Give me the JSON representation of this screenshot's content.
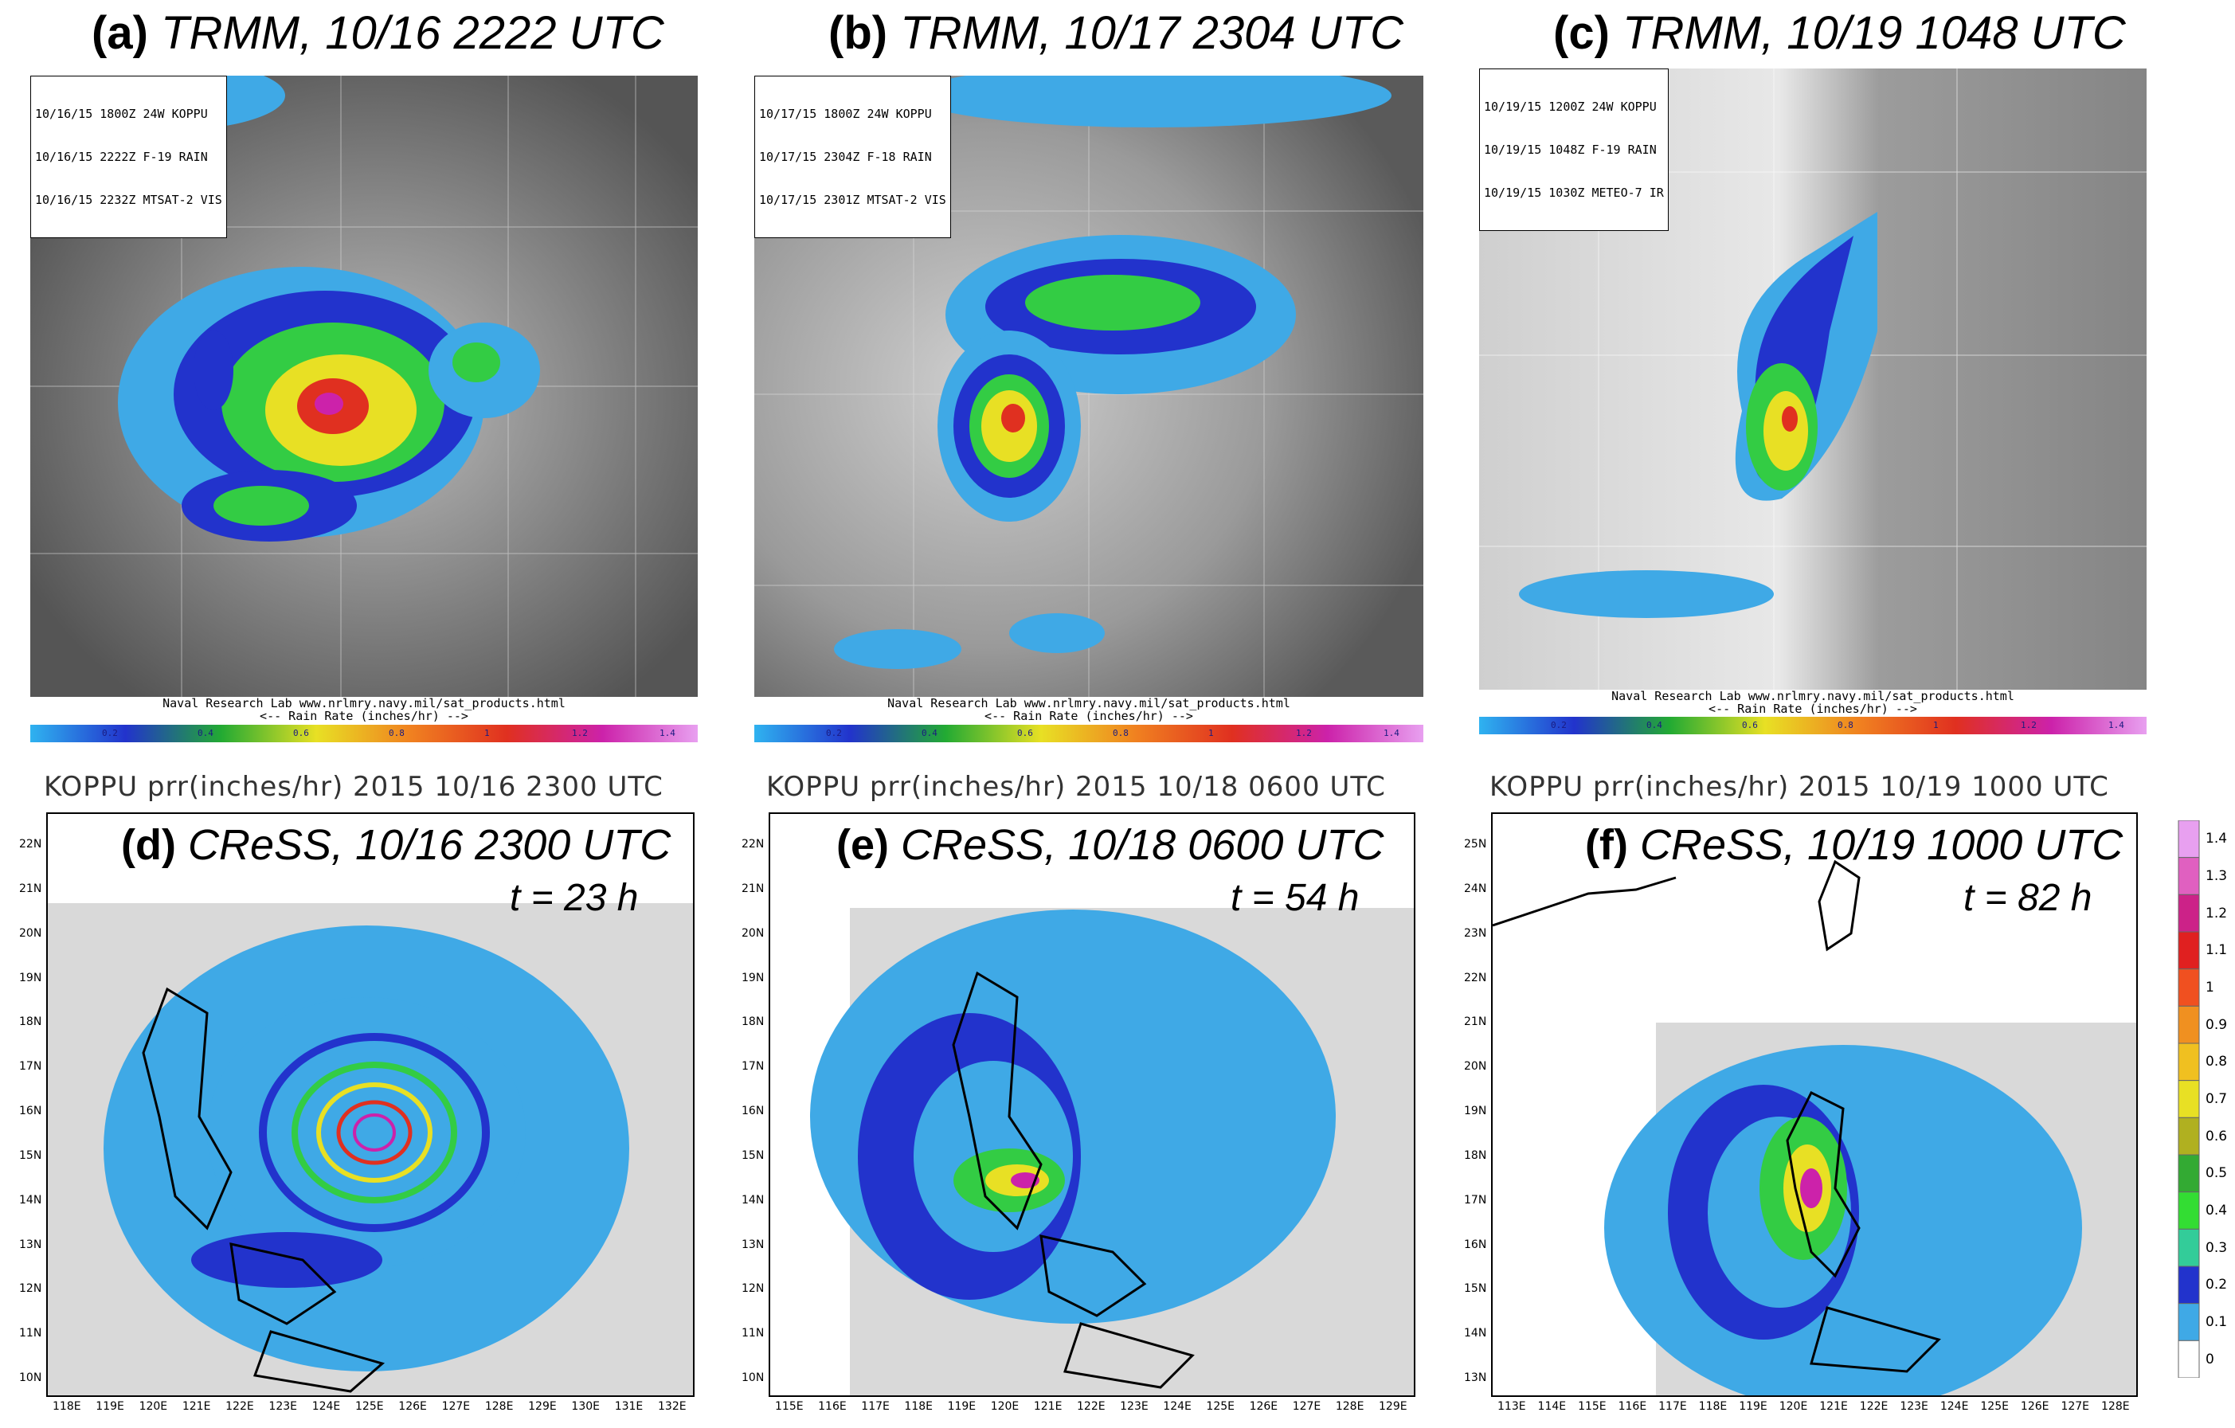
{
  "top_panels": [
    {
      "letter": "(a)",
      "title": "TRMM, 10/16 2222 UTC",
      "legend": [
        "10/16/15 1800Z 24W KOPPU",
        "10/16/15 2222Z F-19 RAIN",
        "10/16/15 2232Z MTSAT-2 VIS"
      ]
    },
    {
      "letter": "(b)",
      "title": "TRMM, 10/17 2304 UTC",
      "legend": [
        "10/17/15 1800Z 24W KOPPU",
        "10/17/15 2304Z F-18 RAIN",
        "10/17/15 2301Z MTSAT-2 VIS"
      ]
    },
    {
      "letter": "(c)",
      "title": "TRMM, 10/19 1048 UTC",
      "legend": [
        "10/19/15 1200Z 24W KOPPU",
        "10/19/15 1048Z F-19 RAIN",
        "10/19/15 1030Z METEO-7 IR"
      ]
    }
  ],
  "credit_line1": "Naval Research Lab  www.nrlmry.navy.mil/sat_products.html",
  "credit_line2": "<--    Rain Rate (inches/hr)    -->",
  "sat_colorbar_labels": [
    "0.2",
    "0.4",
    "0.6",
    "0.8",
    "1",
    "1.2",
    "1.4"
  ],
  "bottom_panels": [
    {
      "header": "KOPPU prr(inches/hr) 2015 10/16 2300 UTC",
      "letter": "(d)",
      "title": "CReSS, 10/16 2300 UTC",
      "time": "t = 23 h",
      "lat": [
        "22N",
        "21N",
        "20N",
        "19N",
        "18N",
        "17N",
        "16N",
        "15N",
        "14N",
        "13N",
        "12N",
        "11N",
        "10N"
      ],
      "lon": [
        "118E",
        "119E",
        "120E",
        "121E",
        "122E",
        "123E",
        "124E",
        "125E",
        "126E",
        "127E",
        "128E",
        "129E",
        "130E",
        "131E",
        "132E"
      ]
    },
    {
      "header": "KOPPU prr(inches/hr) 2015 10/18 0600 UTC",
      "letter": "(e)",
      "title": "CReSS, 10/18 0600 UTC",
      "time": "t = 54 h",
      "lat": [
        "22N",
        "21N",
        "20N",
        "19N",
        "18N",
        "17N",
        "16N",
        "15N",
        "14N",
        "13N",
        "12N",
        "11N",
        "10N"
      ],
      "lon": [
        "115E",
        "116E",
        "117E",
        "118E",
        "119E",
        "120E",
        "121E",
        "122E",
        "123E",
        "124E",
        "125E",
        "126E",
        "127E",
        "128E",
        "129E"
      ]
    },
    {
      "header": "KOPPU prr(inches/hr) 2015 10/19 1000 UTC",
      "letter": "(f)",
      "title": "CReSS, 10/19 1000 UTC",
      "time": "t = 82 h",
      "lat": [
        "25N",
        "24N",
        "23N",
        "22N",
        "21N",
        "20N",
        "19N",
        "18N",
        "17N",
        "16N",
        "15N",
        "14N",
        "13N"
      ],
      "lon": [
        "113E",
        "114E",
        "115E",
        "116E",
        "117E",
        "118E",
        "119E",
        "120E",
        "121E",
        "122E",
        "123E",
        "124E",
        "125E",
        "126E",
        "127E",
        "128E"
      ]
    }
  ],
  "model_colorbar_labels": [
    "1.4",
    "1.3",
    "1.2",
    "1.1",
    "1",
    "0.9",
    "0.8",
    "0.7",
    "0.6",
    "0.5",
    "0.4",
    "0.3",
    "0.2",
    "0.1",
    "0"
  ],
  "colors": {
    "rain_light": "#3fa9e6",
    "rain_blue": "#2233cc",
    "rain_green": "#33cc44",
    "rain_yellow": "#e8e024",
    "rain_red": "#e03020",
    "rain_magenta": "#cc22aa",
    "land": "#d9d9d9"
  }
}
